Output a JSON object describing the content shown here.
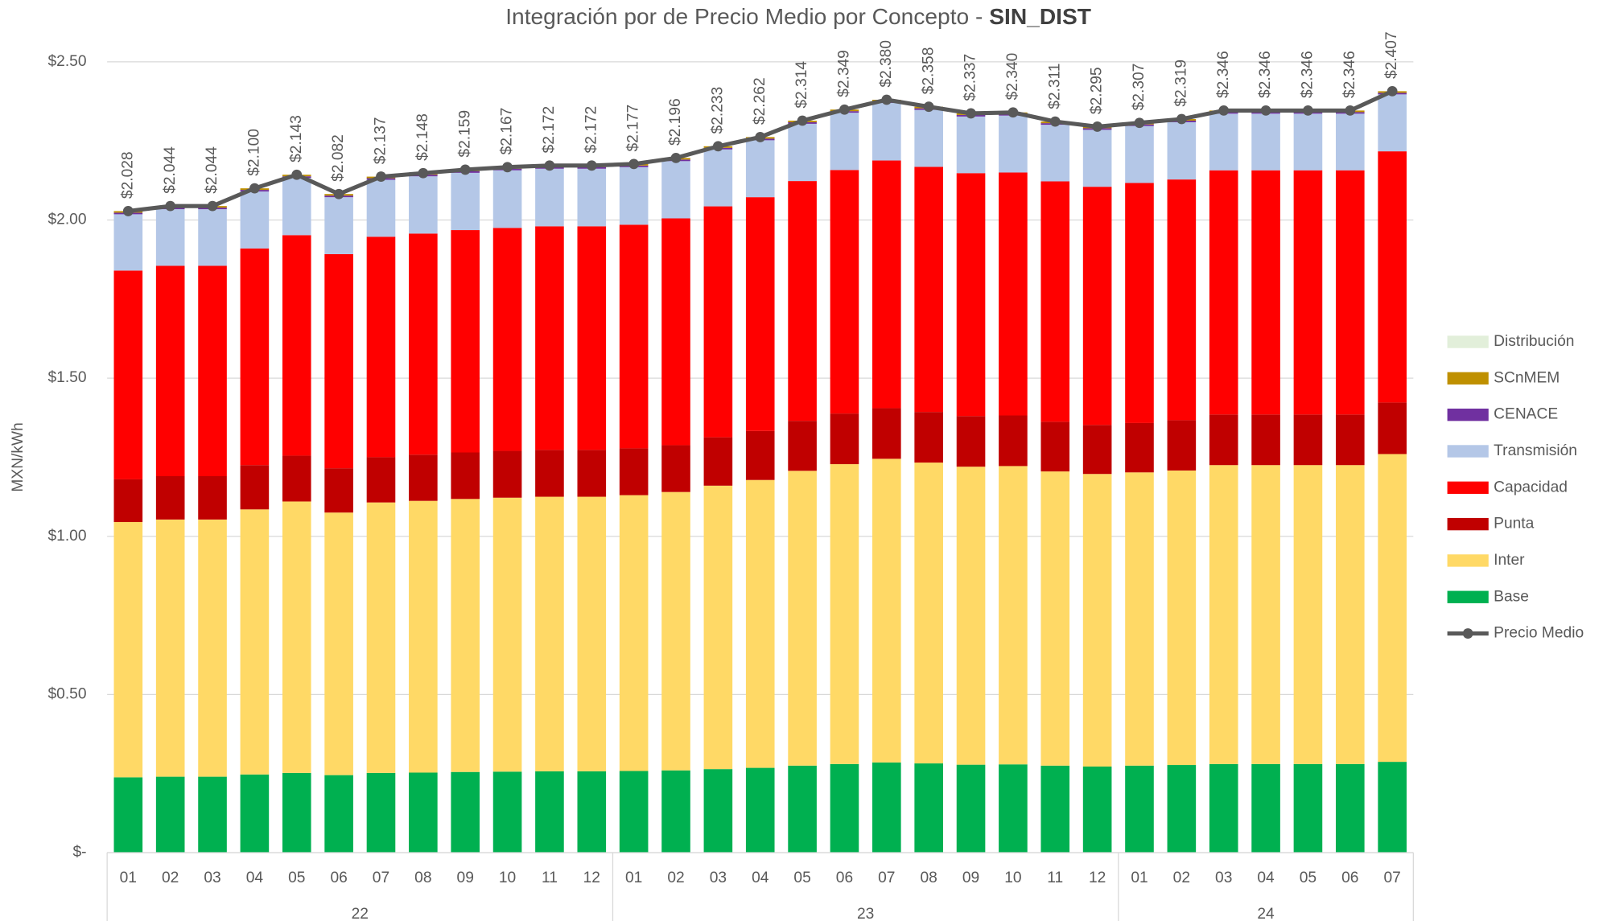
{
  "chart_data": {
    "type": "stacked-bar-line",
    "title": "Integración por de Precio Medio por Concepto - ",
    "title_bold": "SIN_DIST",
    "y_label": "MXN/kWh",
    "groups": [
      {
        "label": "22",
        "categories": [
          "01",
          "02",
          "03",
          "04",
          "05",
          "06",
          "07",
          "08",
          "09",
          "10",
          "11",
          "12"
        ]
      },
      {
        "label": "23",
        "categories": [
          "01",
          "02",
          "03",
          "04",
          "05",
          "06",
          "07",
          "08",
          "09",
          "10",
          "11",
          "12"
        ]
      },
      {
        "label": "24",
        "categories": [
          "01",
          "02",
          "03",
          "04",
          "05",
          "06",
          "07"
        ]
      }
    ],
    "ylim": [
      0,
      2.5
    ],
    "yticks": [
      {
        "value": 0,
        "label": "$-"
      },
      {
        "value": 0.5,
        "label": "$0.50"
      },
      {
        "value": 1,
        "label": "$1.00"
      },
      {
        "value": 1.5,
        "label": "$1.50"
      },
      {
        "value": 2,
        "label": "$2.00"
      },
      {
        "value": 2.5,
        "label": "$2.50"
      }
    ],
    "grid": true,
    "legend": "right",
    "series": [
      {
        "name": "Base",
        "color": "#00b050",
        "values": [
          0.238,
          0.24,
          0.24,
          0.247,
          0.252,
          0.245,
          0.252,
          0.253,
          0.255,
          0.256,
          0.257,
          0.257,
          0.258,
          0.26,
          0.264,
          0.268,
          0.275,
          0.28,
          0.285,
          0.282,
          0.278,
          0.279,
          0.275,
          0.272,
          0.275,
          0.277,
          0.28,
          0.28,
          0.28,
          0.28,
          0.287
        ]
      },
      {
        "name": "Inter",
        "color": "#ffd966",
        "values": [
          0.807,
          0.813,
          0.813,
          0.838,
          0.858,
          0.83,
          0.855,
          0.859,
          0.863,
          0.866,
          0.868,
          0.868,
          0.872,
          0.88,
          0.896,
          0.91,
          0.932,
          0.948,
          0.96,
          0.951,
          0.942,
          0.943,
          0.93,
          0.925,
          0.927,
          0.931,
          0.945,
          0.945,
          0.945,
          0.945,
          0.973
        ]
      },
      {
        "name": "Punta",
        "color": "#c00000",
        "values": [
          0.135,
          0.137,
          0.137,
          0.14,
          0.145,
          0.14,
          0.143,
          0.146,
          0.147,
          0.148,
          0.148,
          0.148,
          0.148,
          0.148,
          0.153,
          0.155,
          0.158,
          0.16,
          0.16,
          0.16,
          0.16,
          0.16,
          0.157,
          0.155,
          0.156,
          0.159,
          0.16,
          0.16,
          0.16,
          0.16,
          0.163
        ]
      },
      {
        "name": "Capacidad",
        "color": "#ff0000",
        "values": [
          0.66,
          0.665,
          0.665,
          0.685,
          0.697,
          0.677,
          0.697,
          0.699,
          0.703,
          0.705,
          0.707,
          0.707,
          0.707,
          0.717,
          0.73,
          0.739,
          0.758,
          0.77,
          0.783,
          0.775,
          0.768,
          0.768,
          0.76,
          0.753,
          0.759,
          0.761,
          0.772,
          0.772,
          0.772,
          0.772,
          0.794
        ]
      },
      {
        "name": "Transmisión",
        "color": "#b4c7e7",
        "values": [
          0.178,
          0.179,
          0.179,
          0.18,
          0.181,
          0.18,
          0.18,
          0.181,
          0.181,
          0.182,
          0.182,
          0.182,
          0.182,
          0.181,
          0.18,
          0.18,
          0.181,
          0.181,
          0.182,
          0.18,
          0.179,
          0.18,
          0.179,
          0.18,
          0.18,
          0.181,
          0.179,
          0.179,
          0.179,
          0.179,
          0.18
        ]
      },
      {
        "name": "CENACE",
        "color": "#7030a0",
        "values": [
          0.005,
          0.005,
          0.005,
          0.005,
          0.005,
          0.005,
          0.005,
          0.005,
          0.005,
          0.005,
          0.005,
          0.005,
          0.005,
          0.005,
          0.005,
          0.005,
          0.005,
          0.005,
          0.005,
          0.005,
          0.005,
          0.005,
          0.005,
          0.005,
          0.005,
          0.005,
          0.005,
          0.005,
          0.005,
          0.005,
          0.005
        ]
      },
      {
        "name": "SCnMEM",
        "color": "#bf9000",
        "values": [
          0.005,
          0.005,
          0.005,
          0.005,
          0.005,
          0.005,
          0.005,
          0.005,
          0.005,
          0.005,
          0.005,
          0.005,
          0.005,
          0.005,
          0.005,
          0.005,
          0.005,
          0.005,
          0.005,
          0.005,
          0.005,
          0.005,
          0.005,
          0.005,
          0.005,
          0.005,
          0.005,
          0.005,
          0.005,
          0.005,
          0.005
        ]
      },
      {
        "name": "Distribución",
        "color": "#e2efda",
        "values": [
          0,
          0,
          0,
          0,
          0,
          0,
          0,
          0,
          0,
          0,
          0,
          0,
          0,
          0,
          0,
          0,
          0,
          0,
          0,
          0,
          0,
          0,
          0,
          0,
          0,
          0,
          0,
          0,
          0,
          0,
          0
        ]
      }
    ],
    "line": {
      "name": "Precio Medio",
      "color": "#595959",
      "values": [
        2.028,
        2.044,
        2.044,
        2.1,
        2.143,
        2.082,
        2.137,
        2.148,
        2.159,
        2.167,
        2.172,
        2.172,
        2.177,
        2.196,
        2.233,
        2.262,
        2.314,
        2.349,
        2.38,
        2.358,
        2.337,
        2.34,
        2.311,
        2.295,
        2.307,
        2.319,
        2.346,
        2.346,
        2.346,
        2.346,
        2.407
      ],
      "value_labels": [
        "$2.028",
        "$2.044",
        "$2.044",
        "$2.100",
        "$2.143",
        "$2.082",
        "$2.137",
        "$2.148",
        "$2.159",
        "$2.167",
        "$2.172",
        "$2.172",
        "$2.177",
        "$2.196",
        "$2.233",
        "$2.262",
        "$2.314",
        "$2.349",
        "$2.380",
        "$2.358",
        "$2.337",
        "$2.340",
        "$2.311",
        "$2.295",
        "$2.307",
        "$2.319",
        "$2.346",
        "$2.346",
        "$2.346",
        "$2.346",
        "$2.407"
      ]
    }
  }
}
